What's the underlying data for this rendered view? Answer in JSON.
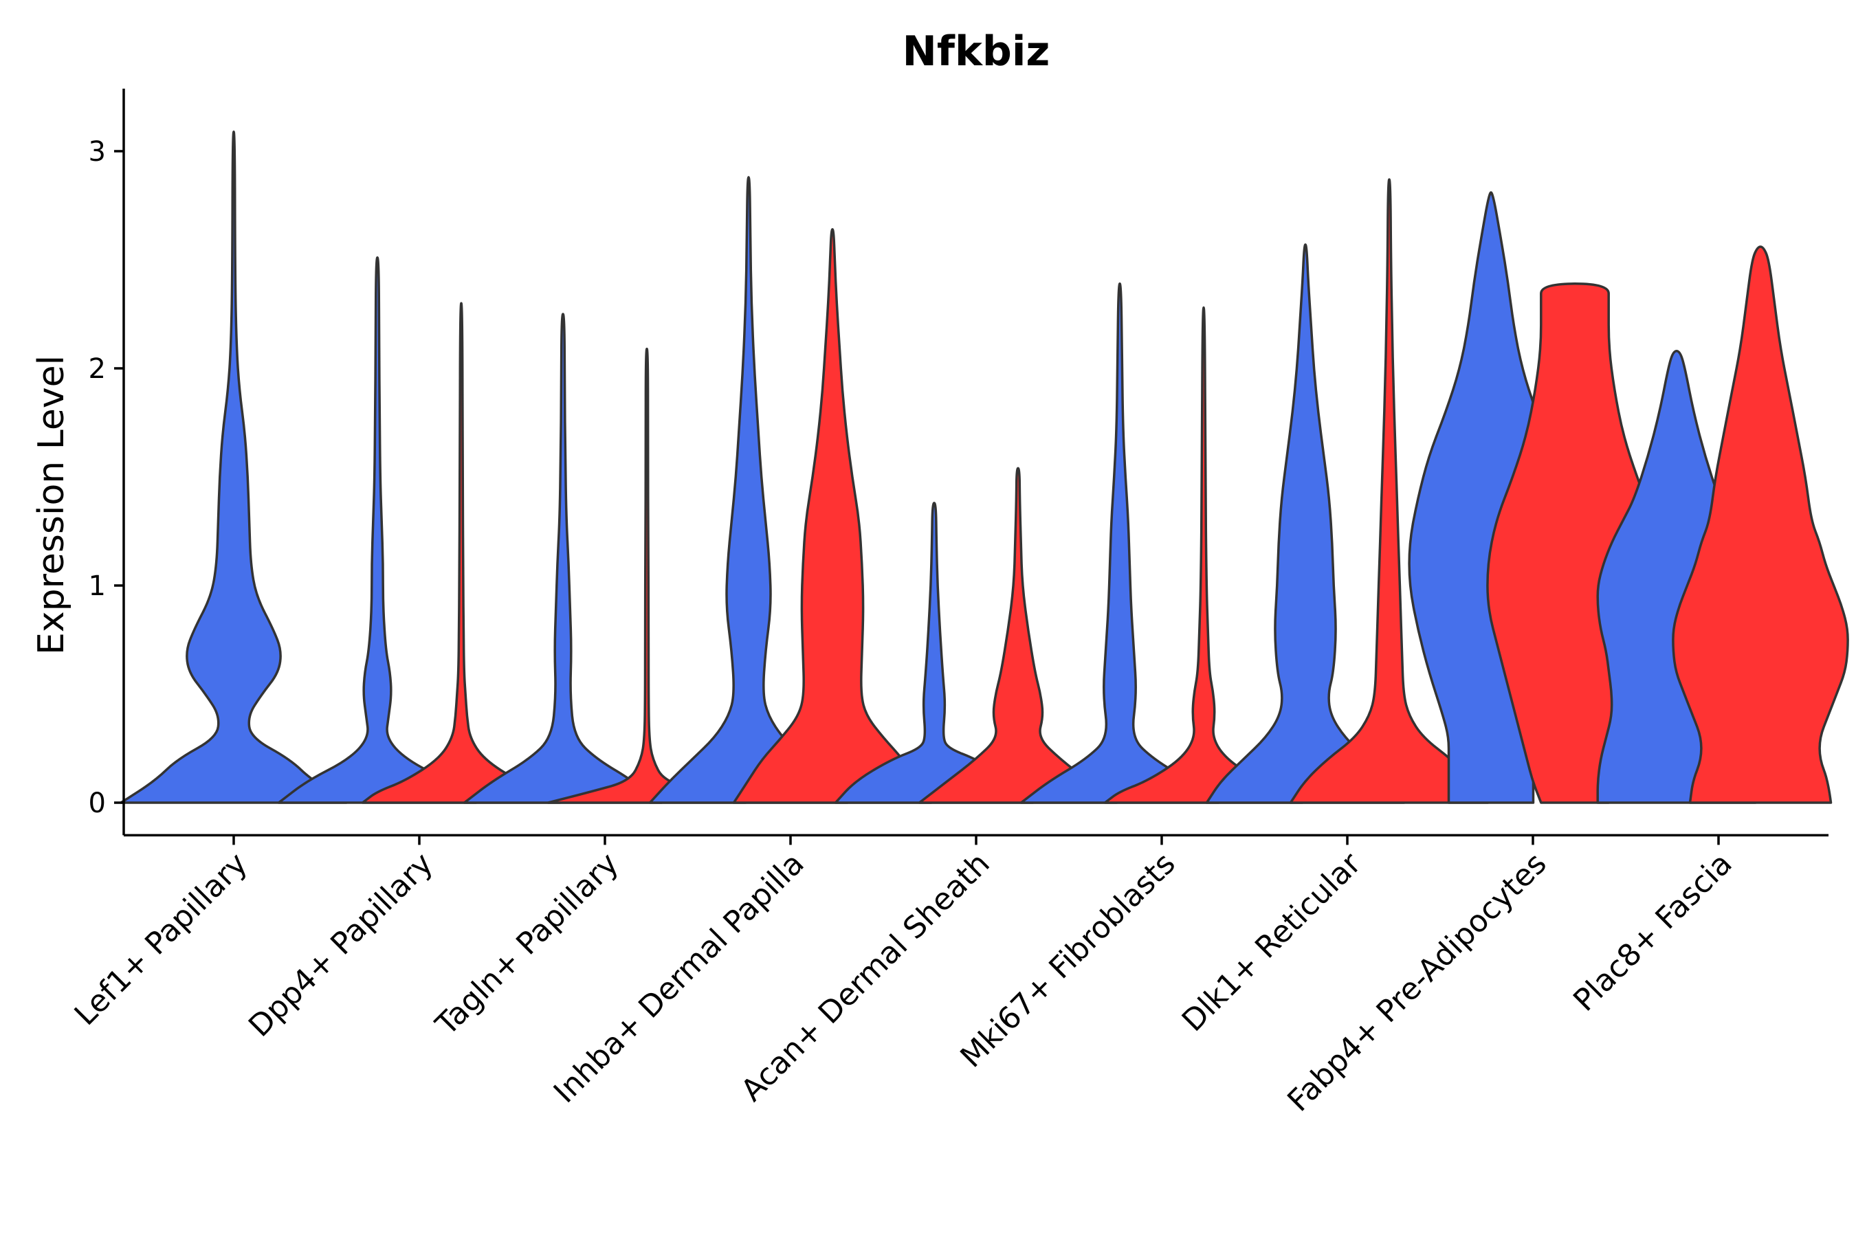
{
  "chart_data": {
    "type": "violin",
    "title": "Nfkbiz",
    "xlabel": "",
    "ylabel": "Expression Level",
    "ylim": [
      -0.15,
      3.25
    ],
    "yticks": [
      0,
      1,
      2,
      3
    ],
    "ytick_labels": [
      "0",
      "1",
      "2",
      "3"
    ],
    "categories": [
      "Lef1+ Papillary",
      "Dpp4+ Papillary",
      "Tagln+ Papillary",
      "Inhba+ Dermal Papilla",
      "Acan+ Dermal Sheath",
      "Mki67+ Fibroblasts",
      "Dlk1+ Reticular",
      "Fabp4+ Pre-Adipocytes",
      "Plac8+ Fascia"
    ],
    "grid": false,
    "legend": "none",
    "series_colors": {
      "left": "#4670EB",
      "right": "#FF3333"
    },
    "violins": [
      {
        "category": "Lef1+ Papillary",
        "side": "left",
        "max": 3.09,
        "profile": [
          [
            0,
            0.4
          ],
          [
            0.1,
            0.28
          ],
          [
            0.2,
            0.2
          ],
          [
            0.3,
            0.06
          ],
          [
            0.4,
            0.05
          ],
          [
            0.5,
            0.1
          ],
          [
            0.6,
            0.16
          ],
          [
            0.7,
            0.17
          ],
          [
            0.8,
            0.14
          ],
          [
            0.95,
            0.08
          ],
          [
            1.1,
            0.06
          ],
          [
            1.3,
            0.055
          ],
          [
            1.5,
            0.05
          ],
          [
            1.7,
            0.04
          ],
          [
            1.9,
            0.02
          ],
          [
            2.1,
            0.01
          ],
          [
            2.4,
            0.005
          ],
          [
            3.09,
            0.004
          ]
        ]
      },
      {
        "category": "Dpp4+ Papillary",
        "side": "left",
        "max": 2.51,
        "profile": [
          [
            0,
            0.35
          ],
          [
            0.1,
            0.25
          ],
          [
            0.2,
            0.1
          ],
          [
            0.3,
            0.03
          ],
          [
            0.4,
            0.04
          ],
          [
            0.5,
            0.05
          ],
          [
            0.6,
            0.045
          ],
          [
            0.7,
            0.03
          ],
          [
            0.9,
            0.02
          ],
          [
            1.1,
            0.02
          ],
          [
            1.3,
            0.015
          ],
          [
            1.5,
            0.01
          ],
          [
            1.8,
            0.008
          ],
          [
            2.1,
            0.006
          ],
          [
            2.51,
            0.005
          ]
        ]
      },
      {
        "category": "Dpp4+ Papillary",
        "side": "right",
        "max": 2.3,
        "profile": [
          [
            0,
            0.35
          ],
          [
            0.05,
            0.3
          ],
          [
            0.1,
            0.2
          ],
          [
            0.2,
            0.08
          ],
          [
            0.3,
            0.03
          ],
          [
            0.4,
            0.02
          ],
          [
            0.5,
            0.015
          ],
          [
            0.6,
            0.01
          ],
          [
            0.8,
            0.008
          ],
          [
            1.0,
            0.007
          ],
          [
            1.5,
            0.005
          ],
          [
            2.3,
            0.004
          ]
        ]
      },
      {
        "category": "Tagln+ Papillary",
        "side": "left",
        "max": 2.25,
        "profile": [
          [
            0,
            0.35
          ],
          [
            0.1,
            0.25
          ],
          [
            0.2,
            0.12
          ],
          [
            0.3,
            0.04
          ],
          [
            0.5,
            0.025
          ],
          [
            0.7,
            0.03
          ],
          [
            0.9,
            0.025
          ],
          [
            1.1,
            0.02
          ],
          [
            1.3,
            0.012
          ],
          [
            1.6,
            0.008
          ],
          [
            1.9,
            0.006
          ],
          [
            2.25,
            0.005
          ]
        ]
      },
      {
        "category": "Tagln+ Papillary",
        "side": "right",
        "max": 2.09,
        "profile": [
          [
            0,
            0.35
          ],
          [
            0.05,
            0.2
          ],
          [
            0.1,
            0.06
          ],
          [
            0.2,
            0.02
          ],
          [
            0.3,
            0.008
          ],
          [
            0.5,
            0.006
          ],
          [
            0.8,
            0.006
          ],
          [
            1.2,
            0.005
          ],
          [
            1.6,
            0.004
          ],
          [
            2.09,
            0.004
          ]
        ]
      },
      {
        "category": "Inhba+ Dermal Papilla",
        "side": "left",
        "max": 2.88,
        "profile": [
          [
            0,
            0.35
          ],
          [
            0.1,
            0.28
          ],
          [
            0.2,
            0.2
          ],
          [
            0.3,
            0.12
          ],
          [
            0.4,
            0.07
          ],
          [
            0.5,
            0.05
          ],
          [
            0.7,
            0.06
          ],
          [
            0.9,
            0.08
          ],
          [
            1.1,
            0.075
          ],
          [
            1.3,
            0.06
          ],
          [
            1.5,
            0.045
          ],
          [
            1.7,
            0.035
          ],
          [
            2.0,
            0.02
          ],
          [
            2.3,
            0.01
          ],
          [
            2.6,
            0.006
          ],
          [
            2.88,
            0.004
          ]
        ]
      },
      {
        "category": "Inhba+ Dermal Papilla",
        "side": "right",
        "max": 2.64,
        "profile": [
          [
            0,
            0.35
          ],
          [
            0.1,
            0.3
          ],
          [
            0.2,
            0.25
          ],
          [
            0.3,
            0.18
          ],
          [
            0.4,
            0.12
          ],
          [
            0.5,
            0.1
          ],
          [
            0.7,
            0.105
          ],
          [
            0.9,
            0.11
          ],
          [
            1.1,
            0.105
          ],
          [
            1.3,
            0.095
          ],
          [
            1.5,
            0.07
          ],
          [
            1.7,
            0.05
          ],
          [
            1.9,
            0.035
          ],
          [
            2.1,
            0.025
          ],
          [
            2.3,
            0.015
          ],
          [
            2.5,
            0.008
          ],
          [
            2.64,
            0.004
          ]
        ]
      },
      {
        "category": "Acan+ Dermal Sheath",
        "side": "left",
        "max": 1.38,
        "profile": [
          [
            0,
            0.35
          ],
          [
            0.1,
            0.28
          ],
          [
            0.2,
            0.15
          ],
          [
            0.25,
            0.05
          ],
          [
            0.3,
            0.03
          ],
          [
            0.45,
            0.04
          ],
          [
            0.6,
            0.03
          ],
          [
            0.8,
            0.02
          ],
          [
            1.0,
            0.012
          ],
          [
            1.2,
            0.008
          ],
          [
            1.38,
            0.006
          ]
        ]
      },
      {
        "category": "Acan+ Dermal Sheath",
        "side": "right",
        "max": 1.54,
        "profile": [
          [
            0,
            0.35
          ],
          [
            0.1,
            0.25
          ],
          [
            0.2,
            0.15
          ],
          [
            0.3,
            0.07
          ],
          [
            0.4,
            0.09
          ],
          [
            0.5,
            0.08
          ],
          [
            0.6,
            0.06
          ],
          [
            0.8,
            0.035
          ],
          [
            1.0,
            0.015
          ],
          [
            1.2,
            0.01
          ],
          [
            1.4,
            0.006
          ],
          [
            1.54,
            0.005
          ]
        ]
      },
      {
        "category": "Mki67+ Fibroblasts",
        "side": "left",
        "max": 2.39,
        "profile": [
          [
            0,
            0.35
          ],
          [
            0.1,
            0.25
          ],
          [
            0.2,
            0.12
          ],
          [
            0.3,
            0.04
          ],
          [
            0.5,
            0.06
          ],
          [
            0.7,
            0.05
          ],
          [
            0.9,
            0.04
          ],
          [
            1.1,
            0.035
          ],
          [
            1.3,
            0.03
          ],
          [
            1.5,
            0.02
          ],
          [
            1.7,
            0.012
          ],
          [
            2.0,
            0.008
          ],
          [
            2.39,
            0.005
          ]
        ]
      },
      {
        "category": "Mki67+ Fibroblasts",
        "side": "right",
        "max": 2.28,
        "profile": [
          [
            0,
            0.35
          ],
          [
            0.05,
            0.3
          ],
          [
            0.1,
            0.2
          ],
          [
            0.2,
            0.08
          ],
          [
            0.3,
            0.03
          ],
          [
            0.4,
            0.04
          ],
          [
            0.5,
            0.035
          ],
          [
            0.6,
            0.02
          ],
          [
            0.8,
            0.015
          ],
          [
            1.0,
            0.01
          ],
          [
            1.5,
            0.006
          ],
          [
            2.28,
            0.004
          ]
        ]
      },
      {
        "category": "Dlk1+ Reticular",
        "side": "left",
        "max": 2.57,
        "profile": [
          [
            0,
            0.35
          ],
          [
            0.1,
            0.3
          ],
          [
            0.2,
            0.22
          ],
          [
            0.3,
            0.14
          ],
          [
            0.4,
            0.09
          ],
          [
            0.5,
            0.08
          ],
          [
            0.6,
            0.1
          ],
          [
            0.8,
            0.11
          ],
          [
            1.0,
            0.1
          ],
          [
            1.2,
            0.095
          ],
          [
            1.4,
            0.085
          ],
          [
            1.6,
            0.065
          ],
          [
            1.8,
            0.045
          ],
          [
            2.0,
            0.03
          ],
          [
            2.2,
            0.02
          ],
          [
            2.4,
            0.01
          ],
          [
            2.57,
            0.004
          ]
        ]
      },
      {
        "category": "Dlk1+ Reticular",
        "side": "right",
        "max": 2.87,
        "profile": [
          [
            0,
            0.35
          ],
          [
            0.1,
            0.3
          ],
          [
            0.2,
            0.22
          ],
          [
            0.3,
            0.12
          ],
          [
            0.4,
            0.07
          ],
          [
            0.5,
            0.05
          ],
          [
            0.7,
            0.045
          ],
          [
            0.9,
            0.04
          ],
          [
            1.1,
            0.035
          ],
          [
            1.3,
            0.03
          ],
          [
            1.5,
            0.025
          ],
          [
            1.7,
            0.02
          ],
          [
            1.9,
            0.015
          ],
          [
            2.2,
            0.01
          ],
          [
            2.5,
            0.006
          ],
          [
            2.87,
            0.004
          ]
        ]
      },
      {
        "category": "Fabp4+ Pre-Adipocytes",
        "side": "left",
        "max": 2.81,
        "profile": [
          [
            0,
            0.15
          ],
          [
            0.1,
            0.15
          ],
          [
            0.2,
            0.15
          ],
          [
            0.3,
            0.15
          ],
          [
            0.4,
            0.17
          ],
          [
            0.6,
            0.22
          ],
          [
            0.8,
            0.26
          ],
          [
            1.0,
            0.29
          ],
          [
            1.2,
            0.29
          ],
          [
            1.4,
            0.26
          ],
          [
            1.6,
            0.22
          ],
          [
            1.8,
            0.16
          ],
          [
            2.0,
            0.11
          ],
          [
            2.2,
            0.08
          ],
          [
            2.4,
            0.06
          ],
          [
            2.6,
            0.035
          ],
          [
            2.81,
            0.006
          ]
        ]
      },
      {
        "category": "Fabp4+ Pre-Adipocytes",
        "side": "right",
        "max": 2.39,
        "profile": [
          [
            0,
            0.12
          ],
          [
            0.1,
            0.15
          ],
          [
            0.2,
            0.17
          ],
          [
            0.3,
            0.19
          ],
          [
            0.5,
            0.23
          ],
          [
            0.7,
            0.27
          ],
          [
            0.9,
            0.31
          ],
          [
            1.1,
            0.31
          ],
          [
            1.3,
            0.28
          ],
          [
            1.5,
            0.22
          ],
          [
            1.7,
            0.17
          ],
          [
            1.9,
            0.14
          ],
          [
            2.1,
            0.12
          ],
          [
            2.3,
            0.12
          ],
          [
            2.39,
            0.12
          ]
        ]
      },
      {
        "category": "Plac8+ Fascia",
        "side": "left",
        "max": 2.08,
        "profile": [
          [
            0,
            0.28
          ],
          [
            0.1,
            0.28
          ],
          [
            0.2,
            0.27
          ],
          [
            0.3,
            0.25
          ],
          [
            0.4,
            0.23
          ],
          [
            0.5,
            0.23
          ],
          [
            0.6,
            0.24
          ],
          [
            0.7,
            0.25
          ],
          [
            0.8,
            0.27
          ],
          [
            0.9,
            0.28
          ],
          [
            1.0,
            0.28
          ],
          [
            1.1,
            0.26
          ],
          [
            1.2,
            0.23
          ],
          [
            1.3,
            0.19
          ],
          [
            1.4,
            0.15
          ],
          [
            1.6,
            0.1
          ],
          [
            1.8,
            0.06
          ],
          [
            2.0,
            0.03
          ],
          [
            2.08,
            0.012
          ]
        ]
      },
      {
        "category": "Plac8+ Fascia",
        "side": "right",
        "max": 2.56,
        "profile": [
          [
            0,
            0.25
          ],
          [
            0.1,
            0.24
          ],
          [
            0.2,
            0.21
          ],
          [
            0.3,
            0.21
          ],
          [
            0.4,
            0.24
          ],
          [
            0.5,
            0.27
          ],
          [
            0.6,
            0.3
          ],
          [
            0.7,
            0.31
          ],
          [
            0.8,
            0.31
          ],
          [
            0.9,
            0.29
          ],
          [
            1.0,
            0.26
          ],
          [
            1.1,
            0.23
          ],
          [
            1.2,
            0.21
          ],
          [
            1.3,
            0.18
          ],
          [
            1.5,
            0.16
          ],
          [
            1.7,
            0.13
          ],
          [
            1.9,
            0.1
          ],
          [
            2.1,
            0.07
          ],
          [
            2.3,
            0.05
          ],
          [
            2.5,
            0.03
          ],
          [
            2.56,
            0.01
          ]
        ]
      }
    ]
  }
}
